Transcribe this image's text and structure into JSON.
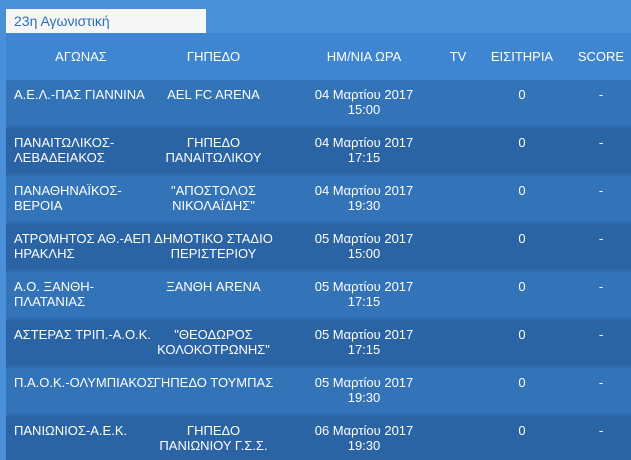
{
  "round_title": "23η Αγωνιστική",
  "headers": {
    "match": "ΑΓΩΝΑΣ",
    "venue": "ΓΗΠΕΔΟ",
    "datetime": "ΗΜ/ΝΙΑ ΩΡΑ",
    "tv": "TV",
    "tickets": "ΕΙΣΙΤΗΡΙΑ",
    "score": "SCORE"
  },
  "fixtures": [
    {
      "match": "Α.Ε.Λ.-ΠΑΣ ΓΙΑΝΝΙΝΑ",
      "venue": "AEL FC ARENA",
      "date": "04 Μαρτίου 2017",
      "time": "15:00",
      "tv": "",
      "tickets": "0",
      "score": "-"
    },
    {
      "match": "ΠΑΝΑΙΤΩΛΙΚΟΣ-ΛΕΒΑΔΕΙΑΚΟΣ",
      "venue": "ΓΗΠΕΔΟ ΠΑΝΑΙΤΩΛΙΚΟΥ",
      "date": "04 Μαρτίου 2017",
      "time": "17:15",
      "tv": "",
      "tickets": "0",
      "score": "-"
    },
    {
      "match": "ΠΑΝΑΘΗΝΑΪΚΟΣ-ΒΕΡΟΙΑ",
      "venue": "\"ΑΠΟΣΤΟΛΟΣ ΝΙΚΟΛΑΪΔΗΣ\"",
      "date": "04 Μαρτίου 2017",
      "time": "19:30",
      "tv": "",
      "tickets": "0",
      "score": "-"
    },
    {
      "match": "ΑΤΡΟΜΗΤΟΣ ΑΘ.-ΑΕΠ ΗΡΑΚΛΗΣ",
      "venue": "ΔΗΜΟΤΙΚΟ ΣΤΑΔΙΟ ΠΕΡΙΣΤΕΡΙΟΥ",
      "date": "05 Μαρτίου 2017",
      "time": "15:00",
      "tv": "",
      "tickets": "0",
      "score": "-"
    },
    {
      "match": "Α.Ο. ΞΑΝΘΗ-ΠΛΑΤΑΝΙΑΣ",
      "venue": "ΞΑΝΘΗ ARENA",
      "date": "05 Μαρτίου 2017",
      "time": "17:15",
      "tv": "",
      "tickets": "0",
      "score": "-"
    },
    {
      "match": "ΑΣΤΕΡΑΣ ΤΡΙΠ.-Α.Ο.Κ.",
      "venue": "\"ΘΕΟΔΩΡΟΣ ΚΟΛΟΚΟΤΡΩΝΗΣ\"",
      "date": "05 Μαρτίου 2017",
      "time": "17:15",
      "tv": "",
      "tickets": "0",
      "score": "-"
    },
    {
      "match": "Π.Α.Ο.Κ.-ΟΛΥΜΠΙΑΚΟΣ",
      "venue": "ΓΗΠΕΔΟ ΤΟΥΜΠΑΣ",
      "date": "05 Μαρτίου 2017",
      "time": "19:30",
      "tv": "",
      "tickets": "0",
      "score": "-"
    },
    {
      "match": "ΠΑΝΙΩΝΙΟΣ-Α.Ε.Κ.",
      "venue": "ΓΗΠΕΔΟ ΠΑΝΙΩΝΙΟΥ Γ.Σ.Σ.",
      "date": "06 Μαρτίου 2017",
      "time": "19:30",
      "tv": "",
      "tickets": "0",
      "score": "-"
    }
  ]
}
